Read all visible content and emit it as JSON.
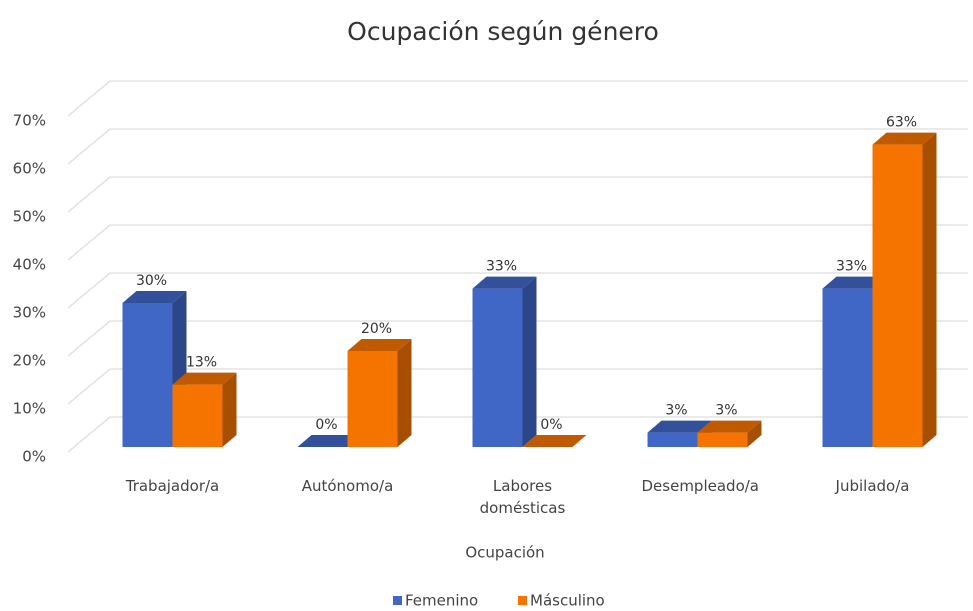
{
  "chart_data": {
    "type": "bar3d",
    "title": "Ocupación según género",
    "categories": [
      "Trabajador/a",
      "Autónomo/a",
      "Labores domésticas",
      "Desempleado/a",
      "Jubilado/a"
    ],
    "series": [
      {
        "name": "Femenino",
        "color": "#4167c6",
        "values": [
          30,
          0,
          33,
          3,
          33
        ],
        "value_labels": [
          "30%",
          "0%",
          "33%",
          "3%",
          "33%"
        ]
      },
      {
        "name": "Másculino",
        "color": "#f57400",
        "values": [
          13,
          20,
          0,
          3,
          63
        ],
        "value_labels": [
          "13%",
          "20%",
          "0%",
          "3%",
          "63%"
        ]
      }
    ],
    "x_label": "Ocupación",
    "ylim": [
      0,
      70
    ],
    "yticks": [
      {
        "value": 0,
        "label": "0%"
      },
      {
        "value": 10,
        "label": "10%"
      },
      {
        "value": 20,
        "label": "20%"
      },
      {
        "value": 30,
        "label": "30%"
      },
      {
        "value": 40,
        "label": "40%"
      },
      {
        "value": 50,
        "label": "50%"
      },
      {
        "value": 60,
        "label": "60%"
      },
      {
        "value": 70,
        "label": "70%"
      }
    ],
    "grid": true,
    "legend": "bottom"
  }
}
